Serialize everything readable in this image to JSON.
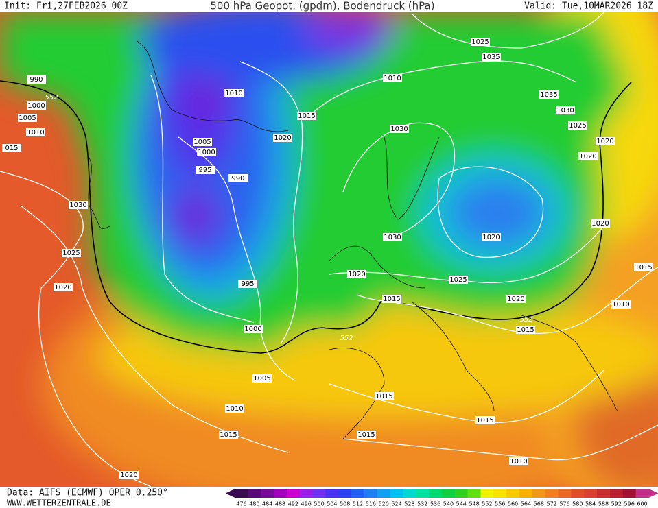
{
  "header": {
    "init": "Init: Fri,27FEB2026 00Z",
    "title": "500 hPa Geopot. (gpdm), Bodendruck (hPa)",
    "valid": "Valid: Tue,10MAR2026 18Z"
  },
  "footer": {
    "data_source": "Data: AIFS (ECMWF) OPER 0.250°",
    "website": "WWW.WETTERZENTRALE.DE"
  },
  "colorbar": {
    "labels": [
      476,
      480,
      484,
      488,
      492,
      496,
      500,
      504,
      508,
      512,
      516,
      520,
      524,
      528,
      532,
      536,
      540,
      544,
      548,
      552,
      556,
      560,
      564,
      568,
      572,
      576,
      580,
      584,
      588,
      592,
      596,
      600
    ],
    "colors": [
      "#3c0a50",
      "#5a0a78",
      "#7a0a9a",
      "#a000b8",
      "#c800d0",
      "#9a20e8",
      "#7030f0",
      "#4a30f0",
      "#2840f0",
      "#1e60f0",
      "#1e80f0",
      "#10a0f0",
      "#00c0f0",
      "#00d8d0",
      "#00e0a0",
      "#00d870",
      "#10d040",
      "#30d020",
      "#60e010",
      "#f0f000",
      "#f8e000",
      "#f8c800",
      "#f8b000",
      "#f09818",
      "#f08020",
      "#e86828",
      "#e05028",
      "#d84030",
      "#c83030",
      "#b82030",
      "#a01030",
      "#c0308a"
    ]
  },
  "isobar_labels": [
    "990",
    "552",
    "1000",
    "1005",
    "1010",
    "015",
    "1030",
    "1025",
    "1020",
    "1010",
    "1005",
    "1000",
    "995",
    "990",
    "1015",
    "1020",
    "995",
    "1000",
    "1005",
    "1010",
    "1015",
    "1020",
    "552",
    "1010",
    "1025",
    "1035",
    "1035",
    "1030",
    "1025",
    "1020",
    "1020",
    "1030",
    "1030",
    "1020",
    "1020",
    "1020",
    "1025",
    "1015",
    "1020",
    "552",
    "1015",
    "1015",
    "1010",
    "1015",
    "1015",
    "1015",
    "1010"
  ]
}
